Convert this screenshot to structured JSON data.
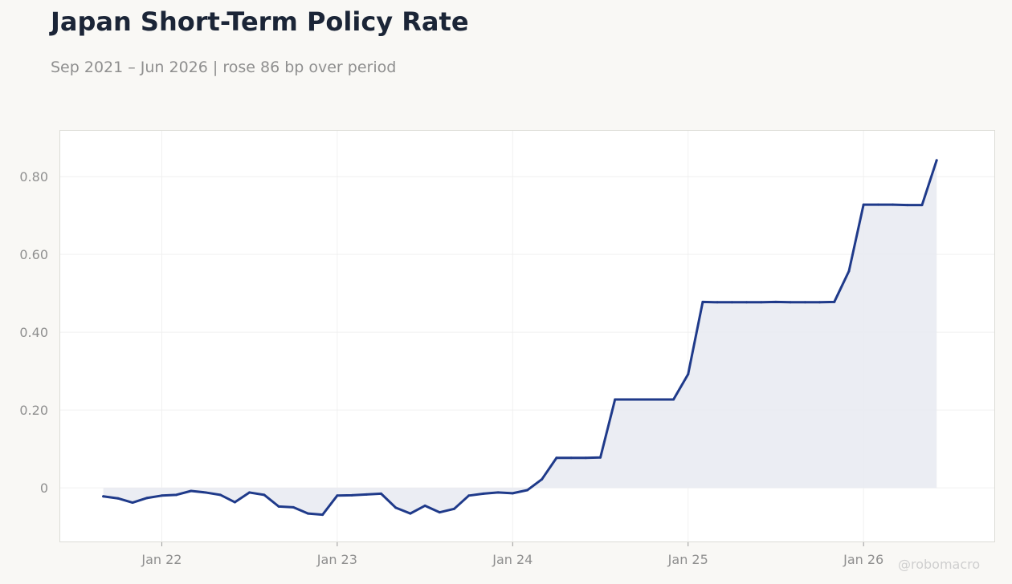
{
  "header": {
    "title": "Japan Short-Term Policy Rate",
    "subtitle": "Sep 2021 – Jun 2026 | rose 86 bp over period"
  },
  "watermark": "@robomacro",
  "colors": {
    "line": "#1f3a8a",
    "fill": "#e9ebf2",
    "grid": "#f0f0f0",
    "frame": "#dcdcd6",
    "tick_text": "#8f8f8f",
    "title": "#1b2537",
    "background": "#f9f8f5",
    "plot_background": "#ffffff"
  },
  "chart_data": {
    "type": "area",
    "title": "Japan Short-Term Policy Rate",
    "subtitle": "Sep 2021 – Jun 2026 | rose 86 bp over period",
    "xlabel": "",
    "ylabel": "",
    "ylim": [
      -0.14,
      0.92
    ],
    "xlim": [
      "2021-06",
      "2026-10"
    ],
    "grid": true,
    "legend": "none",
    "yticks": [
      0,
      0.2,
      0.4,
      0.6,
      0.8
    ],
    "ytick_labels": [
      "0",
      "0.20",
      "0.40",
      "0.60",
      "0.80"
    ],
    "xticks": [
      "2022-01",
      "2023-01",
      "2024-01",
      "2025-01",
      "2026-01"
    ],
    "xtick_labels": [
      "Jan 22",
      "Jan 23",
      "Jan 24",
      "Jan 25",
      "Jan 26"
    ],
    "series": [
      {
        "x": [
          "2021-09",
          "2021-10",
          "2021-11",
          "2021-12",
          "2022-01",
          "2022-02",
          "2022-03",
          "2022-04",
          "2022-05",
          "2022-06",
          "2022-07",
          "2022-08",
          "2022-09",
          "2022-10",
          "2022-11",
          "2022-12",
          "2023-01",
          "2023-02",
          "2023-03",
          "2023-04",
          "2023-05",
          "2023-06",
          "2023-07",
          "2023-08",
          "2023-09",
          "2023-10",
          "2023-11",
          "2023-12",
          "2024-01",
          "2024-02",
          "2024-03",
          "2024-04",
          "2024-05",
          "2024-06",
          "2024-07",
          "2024-08",
          "2024-09",
          "2024-10",
          "2024-11",
          "2024-12",
          "2025-01",
          "2025-02",
          "2025-03",
          "2025-04",
          "2025-05",
          "2025-06",
          "2025-07",
          "2025-08",
          "2025-09",
          "2025-10",
          "2025-11",
          "2025-12",
          "2026-01",
          "2026-02",
          "2026-03",
          "2026-04",
          "2026-05",
          "2026-06"
        ],
        "values": [
          -0.022,
          -0.027,
          -0.038,
          -0.026,
          -0.02,
          -0.018,
          -0.008,
          -0.012,
          -0.018,
          -0.037,
          -0.012,
          -0.018,
          -0.048,
          -0.05,
          -0.066,
          -0.069,
          -0.02,
          -0.019,
          -0.017,
          -0.015,
          -0.051,
          -0.066,
          -0.046,
          -0.063,
          -0.054,
          -0.02,
          -0.015,
          -0.012,
          -0.014,
          -0.006,
          0.022,
          0.077,
          0.077,
          0.077,
          0.078,
          0.227,
          0.227,
          0.227,
          0.227,
          0.227,
          0.292,
          0.478,
          0.477,
          0.477,
          0.477,
          0.477,
          0.478,
          0.477,
          0.477,
          0.477,
          0.478,
          0.557,
          0.728,
          0.728,
          0.728,
          0.727,
          0.727,
          0.842
        ]
      }
    ]
  }
}
